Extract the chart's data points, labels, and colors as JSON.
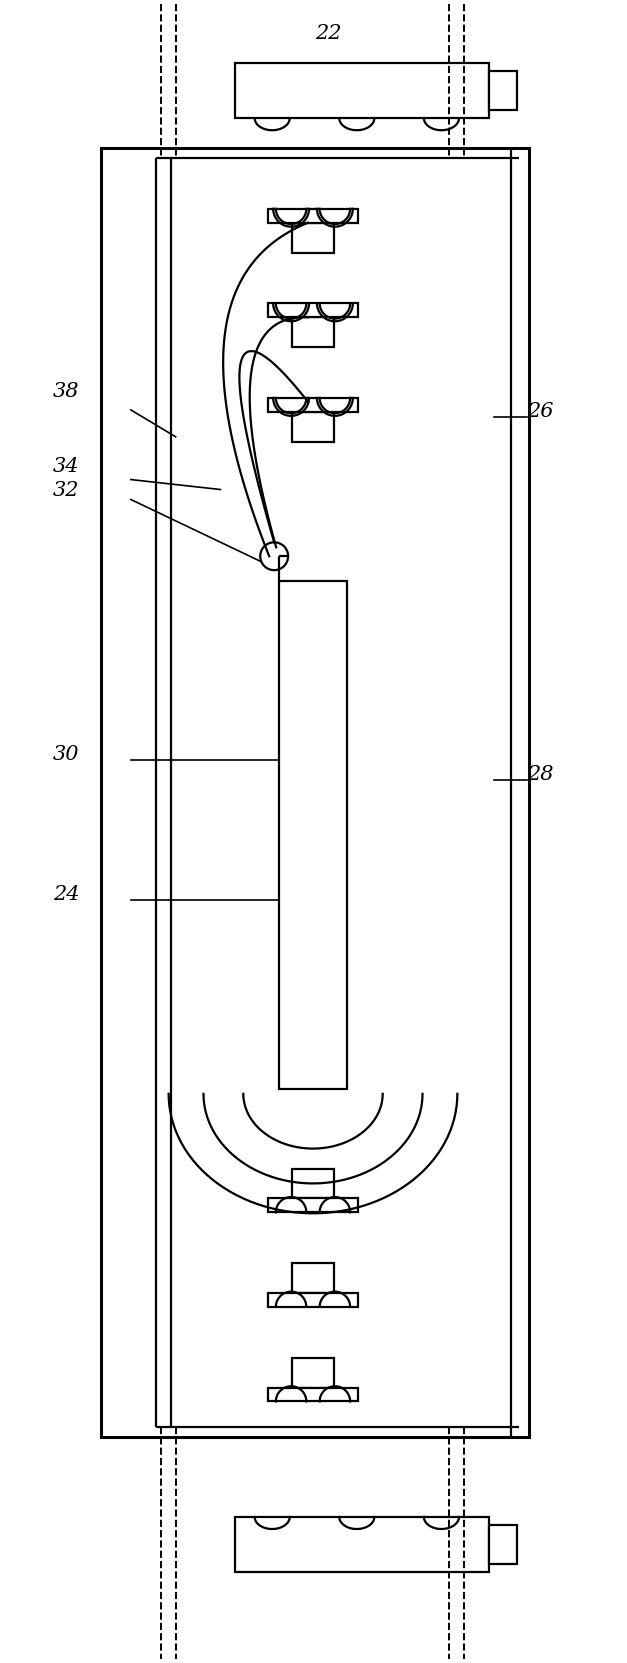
{
  "fig_width": 6.27,
  "fig_height": 16.63,
  "dpi": 100,
  "bg_color": "#ffffff",
  "line_color": "#000000",
  "lw": 1.6,
  "tlw": 2.2
}
